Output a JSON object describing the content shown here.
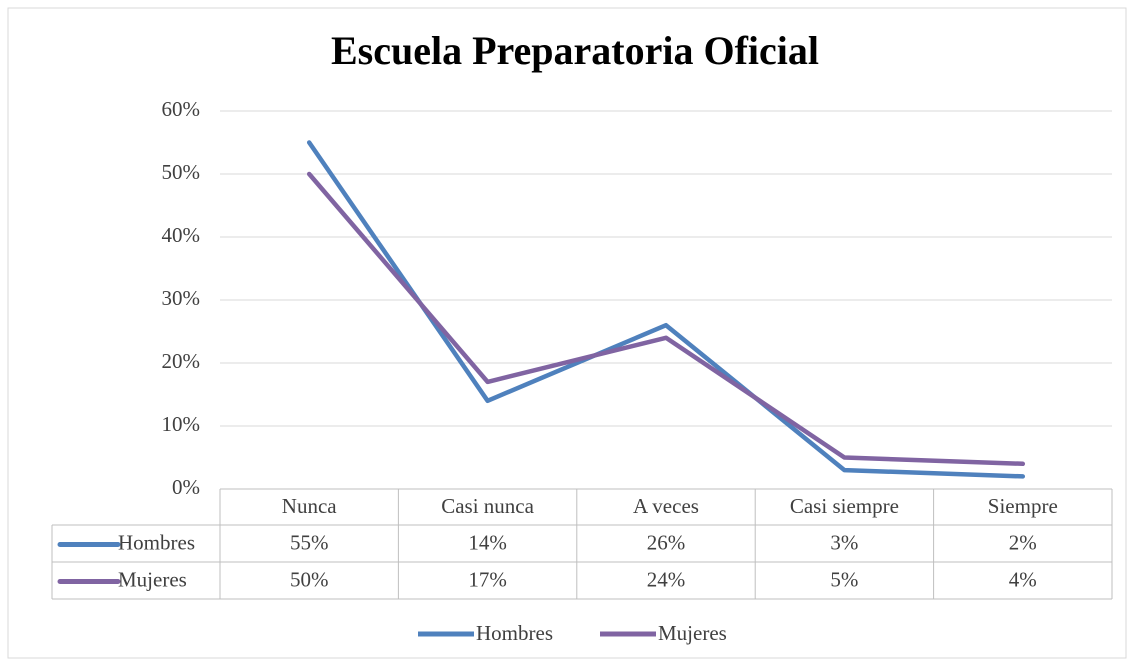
{
  "chart_data": {
    "type": "line",
    "title": "Escuela Preparatoria Oficial",
    "categories": [
      "Nunca",
      "Casi nunca",
      "A veces",
      "Casi siempre",
      "Siempre"
    ],
    "series": [
      {
        "name": "Hombres",
        "color": "#4f81bd",
        "values": [
          55,
          14,
          26,
          3,
          2
        ],
        "value_labels": [
          "55%",
          "14%",
          "26%",
          "3%",
          "2%"
        ]
      },
      {
        "name": "Mujeres",
        "color": "#8064a2",
        "values": [
          50,
          17,
          24,
          5,
          4
        ],
        "value_labels": [
          "50%",
          "17%",
          "24%",
          "5%",
          "4%"
        ]
      }
    ],
    "ylim": [
      0,
      60
    ],
    "yticks": [
      {
        "value": 0,
        "label": "0%"
      },
      {
        "value": 10,
        "label": "10%"
      },
      {
        "value": 20,
        "label": "20%"
      },
      {
        "value": 30,
        "label": "30%"
      },
      {
        "value": 40,
        "label": "40%"
      },
      {
        "value": 50,
        "label": "50%"
      },
      {
        "value": 60,
        "label": "60%"
      }
    ],
    "grid": true
  }
}
